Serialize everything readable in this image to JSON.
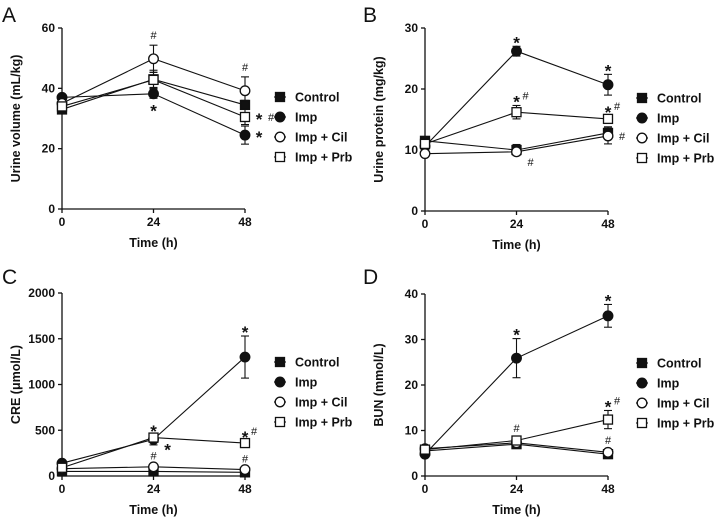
{
  "chart_data": [
    {
      "type": "line",
      "panel": "A",
      "xlabel": "Time (h)",
      "ylabel": "Urine volume (mL/kg)",
      "x": [
        0,
        24,
        48
      ],
      "x_ticks": [
        "0",
        "24",
        "48"
      ],
      "ylim": [
        0,
        60
      ],
      "y_ticks": [
        "0",
        "20",
        "40",
        "60"
      ],
      "grid": false,
      "legend_position": "right",
      "series": [
        {
          "name": "Control",
          "marker": "filled-square",
          "values": [
            33,
            43,
            34.5
          ],
          "errors": [
            1,
            3,
            1.5
          ]
        },
        {
          "name": "Imp",
          "marker": "filled-circle",
          "values": [
            37,
            38.2,
            24.5
          ],
          "errors": [
            1,
            1.5,
            3
          ]
        },
        {
          "name": "Imp + Cil",
          "marker": "open-circle",
          "values": [
            35,
            49.8,
            39.2
          ],
          "errors": [
            1,
            4.5,
            4.6
          ]
        },
        {
          "name": "Imp + Prb",
          "marker": "open-square",
          "values": [
            34,
            42.8,
            30.5
          ],
          "errors": [
            1,
            2.5,
            2.5
          ]
        }
      ],
      "annotations": [
        {
          "text": "#",
          "series": 2,
          "x": 24,
          "place": "above"
        },
        {
          "text": "#",
          "series": 2,
          "x": 48,
          "place": "above"
        },
        {
          "text": "*",
          "series": 1,
          "x": 24,
          "place": "below"
        },
        {
          "text": "*",
          "series": 3,
          "x": 48,
          "place": "right"
        },
        {
          "text": "#",
          "series": 3,
          "x": 48,
          "place": "right2"
        },
        {
          "text": "*",
          "series": 1,
          "x": 48,
          "place": "right"
        }
      ]
    },
    {
      "type": "line",
      "panel": "B",
      "xlabel": "Time (h)",
      "ylabel": "Urine protein (mg/kg)",
      "x": [
        0,
        24,
        48
      ],
      "x_ticks": [
        "0",
        "24",
        "48"
      ],
      "ylim": [
        0,
        30
      ],
      "y_ticks": [
        "0",
        "10",
        "20",
        "30"
      ],
      "grid": false,
      "legend_position": "right",
      "series": [
        {
          "name": "Control",
          "marker": "filled-square",
          "values": [
            11.5,
            10,
            12.8
          ],
          "errors": [
            0.4,
            0.9,
            1
          ]
        },
        {
          "name": "Imp",
          "marker": "filled-circle",
          "values": [
            10.6,
            26.2,
            20.7
          ],
          "errors": [
            0.4,
            0.8,
            1.7
          ]
        },
        {
          "name": "Imp + Cil",
          "marker": "open-circle",
          "values": [
            9.4,
            9.7,
            12.3
          ],
          "errors": [
            0.3,
            0.6,
            1.3
          ]
        },
        {
          "name": "Imp + Prb",
          "marker": "open-square",
          "values": [
            11,
            16.2,
            15.1
          ],
          "errors": [
            0.4,
            1.1,
            0.5
          ]
        }
      ],
      "annotations": [
        {
          "text": "*",
          "series": 1,
          "x": 24,
          "place": "above"
        },
        {
          "text": "*",
          "series": 1,
          "x": 48,
          "place": "above"
        },
        {
          "text": "*",
          "series": 3,
          "x": 24,
          "place": "above"
        },
        {
          "text": "#",
          "series": 3,
          "x": 24,
          "place": "above-right"
        },
        {
          "text": "*",
          "series": 3,
          "x": 48,
          "place": "above"
        },
        {
          "text": "#",
          "series": 3,
          "x": 48,
          "place": "above-right"
        },
        {
          "text": "#",
          "series": 2,
          "x": 24,
          "place": "below-right"
        },
        {
          "text": "#",
          "series": 2,
          "x": 48,
          "place": "right"
        }
      ]
    },
    {
      "type": "line",
      "panel": "C",
      "xlabel": "Time (h)",
      "ylabel": "CRE (μmol/L)",
      "x": [
        0,
        24,
        48
      ],
      "x_ticks": [
        "0",
        "24",
        "48"
      ],
      "ylim": [
        0,
        2000
      ],
      "y_ticks": [
        "0",
        "500",
        "1000",
        "1500",
        "2000"
      ],
      "grid": false,
      "legend_position": "right",
      "series": [
        {
          "name": "Control",
          "marker": "filled-square",
          "values": [
            50,
            50,
            40
          ],
          "errors": [
            10,
            10,
            10
          ]
        },
        {
          "name": "Imp",
          "marker": "filled-circle",
          "values": [
            140,
            400,
            1300
          ],
          "errors": [
            20,
            60,
            230
          ]
        },
        {
          "name": "Imp + Cil",
          "marker": "open-circle",
          "values": [
            80,
            100,
            70
          ],
          "errors": [
            10,
            15,
            10
          ]
        },
        {
          "name": "Imp + Prb",
          "marker": "open-square",
          "values": [
            90,
            420,
            360
          ],
          "errors": [
            10,
            30,
            20
          ]
        }
      ],
      "annotations": [
        {
          "text": "*",
          "series": 3,
          "x": 24,
          "place": "above"
        },
        {
          "text": "*",
          "series": 1,
          "x": 24,
          "place": "below-right"
        },
        {
          "text": "*",
          "series": 1,
          "x": 48,
          "place": "above"
        },
        {
          "text": "*",
          "series": 3,
          "x": 48,
          "place": "above"
        },
        {
          "text": "#",
          "series": 3,
          "x": 48,
          "place": "above-right"
        },
        {
          "text": "#",
          "series": 2,
          "x": 24,
          "place": "above"
        },
        {
          "text": "#",
          "series": 2,
          "x": 48,
          "place": "above"
        }
      ]
    },
    {
      "type": "line",
      "panel": "D",
      "xlabel": "Time (h)",
      "ylabel": "BUN (mmol/L)",
      "x": [
        0,
        24,
        48
      ],
      "x_ticks": [
        "0",
        "24",
        "48"
      ],
      "ylim": [
        0,
        40
      ],
      "y_ticks": [
        "0",
        "10",
        "20",
        "30",
        "40"
      ],
      "grid": false,
      "legend_position": "right",
      "series": [
        {
          "name": "Control",
          "marker": "filled-square",
          "values": [
            5.5,
            7,
            4.8
          ],
          "errors": [
            0.5,
            0.5,
            0.5
          ]
        },
        {
          "name": "Imp",
          "marker": "filled-circle",
          "values": [
            4.8,
            25.9,
            35.2
          ],
          "errors": [
            0.5,
            4.3,
            2.5
          ]
        },
        {
          "name": "Imp + Cil",
          "marker": "open-circle",
          "values": [
            6,
            7.3,
            5.2
          ],
          "errors": [
            0.5,
            0.6,
            0.5
          ]
        },
        {
          "name": "Imp + Prb",
          "marker": "open-square",
          "values": [
            5.8,
            7.8,
            12.4
          ],
          "errors": [
            0.5,
            0.6,
            2
          ]
        }
      ],
      "annotations": [
        {
          "text": "*",
          "series": 1,
          "x": 24,
          "place": "above"
        },
        {
          "text": "*",
          "series": 1,
          "x": 48,
          "place": "above"
        },
        {
          "text": "*",
          "series": 3,
          "x": 48,
          "place": "above"
        },
        {
          "text": "#",
          "series": 3,
          "x": 48,
          "place": "above-right"
        },
        {
          "text": "#",
          "series": 3,
          "x": 24,
          "place": "above"
        },
        {
          "text": "#",
          "series": 2,
          "x": 48,
          "place": "above"
        }
      ]
    }
  ]
}
